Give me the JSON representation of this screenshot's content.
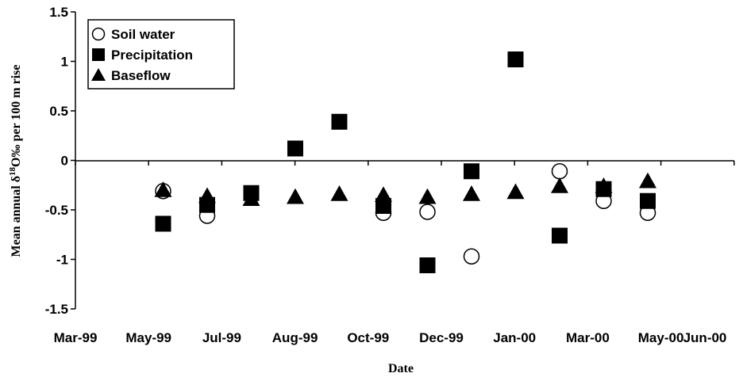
{
  "chart_data": {
    "type": "scatter",
    "title": "",
    "xlabel": "Date",
    "ylabel": "Mean annual δ18O‰ per 100 m rise",
    "ylabel_parts": {
      "pre": "Mean annual δ",
      "sup": "18",
      "post": "O‰ per 100 m rise"
    },
    "x_ticks": [
      "Mar-99",
      "May-99",
      "Jul-99",
      "Aug-99",
      "Oct-99",
      "Dec-99",
      "Jan-00",
      "Mar-00",
      "May-00",
      "Jun-00"
    ],
    "y_ticks": [
      "1.5",
      "1",
      "0.5",
      "0",
      "-0.5",
      "-1",
      "-1.5"
    ],
    "ylim": [
      -1.5,
      1.5
    ],
    "grid": false,
    "legend_position": "top-left",
    "series": [
      {
        "name": "Soil water",
        "marker": "open-circle",
        "x": [
          "May-99",
          "Jun-99",
          "Oct-99",
          "Nov-99",
          "Dec-99",
          "Feb-00",
          "Mar-00",
          "Apr-00"
        ],
        "y": [
          -0.31,
          -0.56,
          -0.53,
          -0.52,
          -0.97,
          -0.11,
          -0.41,
          -0.53
        ]
      },
      {
        "name": "Precipitation",
        "marker": "filled-square",
        "x": [
          "May-99",
          "Jun-99",
          "Jul-99",
          "Aug-99",
          "Sep-99",
          "Oct-99",
          "Nov-99",
          "Dec-99",
          "Jan-00",
          "Feb-00",
          "Mar-00",
          "Apr-00"
        ],
        "y": [
          -0.64,
          -0.45,
          -0.33,
          0.12,
          0.39,
          -0.46,
          -1.06,
          -0.11,
          1.02,
          -0.76,
          -0.29,
          -0.41
        ]
      },
      {
        "name": "Baseflow",
        "marker": "filled-triangle",
        "x": [
          "May-99",
          "Jun-99",
          "Jul-99",
          "Aug-99",
          "Sep-99",
          "Oct-99",
          "Nov-99",
          "Dec-99",
          "Jan-00",
          "Feb-00",
          "Mar-00",
          "Apr-00"
        ],
        "y": [
          -0.3,
          -0.36,
          -0.39,
          -0.37,
          -0.34,
          -0.35,
          -0.37,
          -0.34,
          -0.32,
          -0.26,
          -0.26,
          -0.21
        ]
      }
    ]
  }
}
